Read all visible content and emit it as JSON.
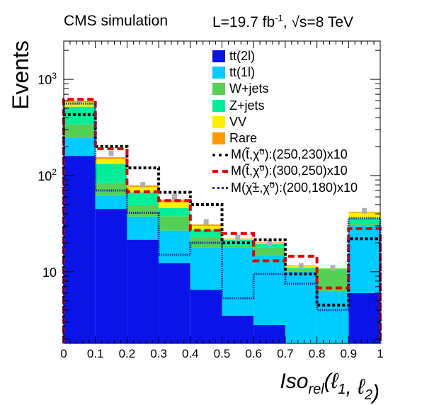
{
  "header": {
    "left": "CMS simulation",
    "right_prefix": "L=19.7 fb",
    "right_sup": "-1",
    "right_suffix": ", √s=8 TeV"
  },
  "chart_data": {
    "type": "bar",
    "stacked": true,
    "log_y": true,
    "ylabel": "Events",
    "xlabel": "Iso_rel(ℓ_1, ℓ_2)",
    "xlim": [
      0,
      1
    ],
    "ylim": [
      1.8,
      2500
    ],
    "x_ticks": [
      "0",
      "0.1",
      "0.2",
      "0.3",
      "0.4",
      "0.5",
      "0.6",
      "0.7",
      "0.8",
      "0.9",
      "1"
    ],
    "y_tick_labels": [
      {
        "value": 10,
        "label": "10"
      },
      {
        "value": 100,
        "label": "10",
        "sup": "2"
      },
      {
        "value": 1000,
        "label": "10",
        "sup": "3"
      }
    ],
    "bin_edges": [
      0,
      0.1,
      0.2,
      0.3,
      0.4,
      0.5,
      0.6,
      0.7,
      0.8,
      0.9,
      1.0
    ],
    "stack": [
      {
        "name": "tt(2l)",
        "color": "#0a14e6",
        "values": [
          160,
          45,
          21.5,
          12.3,
          6.5,
          3.5,
          2.8,
          1.5,
          1.5,
          6.0
        ]
      },
      {
        "name": "tt(1l)",
        "color": "#00ccff",
        "values": [
          85,
          17,
          16,
          14.5,
          11.5,
          14.5,
          12,
          8.5,
          4.7,
          24
        ]
      },
      {
        "name": "W+jets",
        "color": "#55d055",
        "values": [
          95,
          22,
          11.5,
          11,
          5,
          0.7,
          3.2,
          0.5,
          4.3,
          1.5
        ]
      },
      {
        "name": "Z+jets",
        "color": "#00ee99",
        "values": [
          180,
          48,
          18,
          8,
          4.4,
          2.8,
          1.5,
          0.5,
          0.3,
          4.5
        ]
      },
      {
        "name": "VV",
        "color": "#ffee00",
        "values": [
          60,
          17,
          9,
          7,
          2.6,
          0.5,
          0.5,
          0.4,
          0.2,
          5
        ]
      },
      {
        "name": "Rare",
        "color": "#ff9a00",
        "values": [
          20,
          6,
          3,
          2.8,
          1,
          0.2,
          0.2,
          0.2,
          0,
          1
        ]
      }
    ],
    "signals": [
      {
        "name": "M(t̃,χ̃⁰):(250,230)x10",
        "color": "#000000",
        "width": 4,
        "dash": "4,3",
        "values": [
          430,
          200,
          120,
          67,
          50,
          20,
          21.5,
          9.5,
          4.5,
          22
        ]
      },
      {
        "name": "M(t̃,χ̃⁰):(300,250)x10",
        "color": "#e00000",
        "width": 4,
        "dash": "9,5",
        "values": [
          620,
          190,
          68,
          55,
          27,
          25,
          13,
          14.5,
          6.8,
          28
        ]
      },
      {
        "name": "M(χ̃±,χ̃⁰):(200,180)x10",
        "color": "#1a2a9a",
        "width": 3,
        "dash": "1.5,1.5",
        "values": [
          560,
          70,
          41,
          15,
          20,
          5.3,
          9.5,
          7.5,
          4,
          36
        ]
      }
    ],
    "uncertainty": {
      "color": "#b0b0b0",
      "center": [
        600,
        170,
        80,
        60,
        33,
        22.5,
        20,
        11.5,
        11,
        43
      ]
    }
  }
}
